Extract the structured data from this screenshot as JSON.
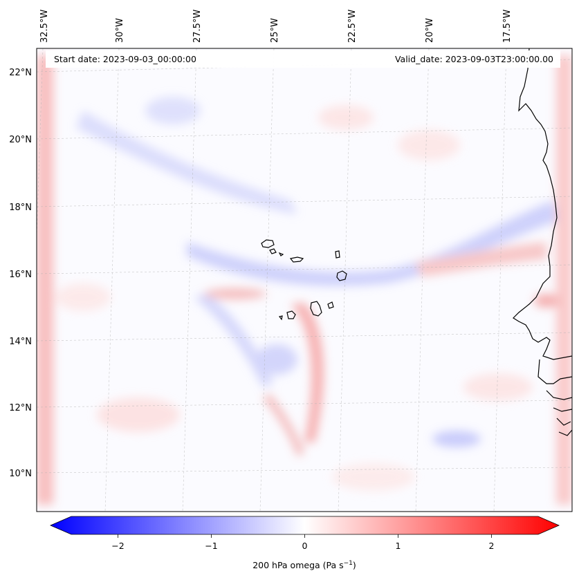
{
  "header": {
    "start_date": "Start date: 2023-09-03_00:00:00",
    "valid_date": "Valid_date: 2023-09-03T23:00:00.00"
  },
  "axes": {
    "lon_labels": [
      "32.5°W",
      "30°W",
      "27.5°W",
      "25°W",
      "22.5°W",
      "20°W",
      "17.5°W"
    ],
    "lat_labels": [
      "22°N",
      "20°N",
      "18°N",
      "16°N",
      "14°N",
      "12°N",
      "10°N"
    ]
  },
  "colorbar": {
    "ticks": [
      "−2",
      "−1",
      "0",
      "1",
      "2"
    ],
    "tick_values": [
      -2,
      -1,
      0,
      1,
      2
    ],
    "range": [
      -2.75,
      2.75
    ],
    "label_main": "200 hPa omega (Pa s",
    "label_exp": "−1",
    "label_end": ")",
    "colors": {
      "low": "#0000ff",
      "mid": "#ffffff",
      "high": "#ff0000"
    }
  },
  "colors": {
    "coastline": "#000000",
    "gridline": "#b0b0b0",
    "frame": "#000000"
  }
}
